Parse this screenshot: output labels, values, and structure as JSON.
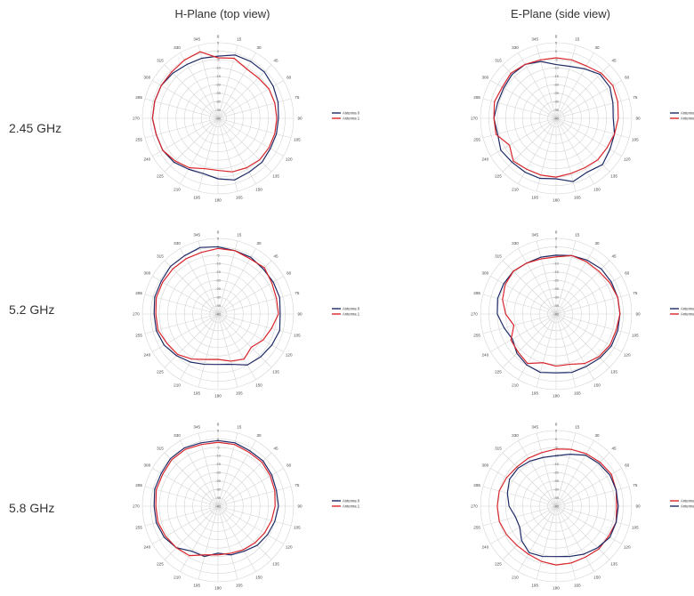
{
  "headers": {
    "h_plane": "H-Plane (top view)",
    "e_plane": "E-Plane (side view)"
  },
  "rows": [
    "2.45 GHz",
    "5.2 GHz",
    "5.8 GHz"
  ],
  "colors": {
    "antenna_0": "#1f2a66",
    "antenna_1": "#d9252b"
  },
  "chart_data": [
    {
      "type": "polar",
      "plane": "H-Plane",
      "band": "2.45 GHz",
      "angles": [
        0,
        15,
        30,
        45,
        60,
        75,
        90,
        105,
        120,
        135,
        150,
        165,
        180,
        195,
        210,
        225,
        240,
        255,
        270,
        285,
        300,
        315,
        330,
        345
      ],
      "rlim": [
        -40,
        5
      ],
      "r_ticks": [
        "5",
        "0",
        "-5",
        "-10",
        "-15",
        "-20",
        "-25",
        "-30",
        "-35",
        "-40"
      ],
      "legend": [
        "Antenna 0",
        "Antenna 1"
      ],
      "series": [
        {
          "name": "Antenna 0",
          "values": [
            -3,
            -1,
            -1,
            -1,
            -2,
            -3,
            -4,
            -4,
            -4,
            -3,
            -3,
            -2,
            -4,
            -6,
            -5,
            -3,
            -2,
            -2,
            -1,
            -1,
            -1,
            -2,
            -3,
            -3
          ]
        },
        {
          "name": "Antenna 1",
          "values": [
            -4,
            -3,
            -6,
            -6,
            -5,
            -5,
            -5,
            -5,
            -5,
            -5,
            -6,
            -7,
            -9,
            -9,
            -6,
            -4,
            -2,
            -2,
            -1,
            -1,
            -1,
            -1,
            0,
            1
          ]
        }
      ]
    },
    {
      "type": "polar",
      "plane": "E-Plane",
      "band": "2.45 GHz",
      "angles": [
        0,
        15,
        30,
        45,
        60,
        75,
        90,
        105,
        120,
        135,
        150,
        165,
        180,
        195,
        210,
        225,
        240,
        255,
        270,
        285,
        300,
        315,
        330,
        345
      ],
      "rlim": [
        -40,
        5
      ],
      "r_ticks": [
        "5",
        "0",
        "-5",
        "-10",
        "-15",
        "-20",
        "-25",
        "-30",
        "-35",
        "-40"
      ],
      "legend": [
        "Antenna 0",
        "Antenna 1"
      ],
      "series": [
        {
          "name": "Antenna 0",
          "values": [
            -8,
            -8,
            -6,
            -3,
            -3,
            -5,
            -6,
            -4,
            -3,
            -1,
            -3,
            -1,
            -4,
            -3,
            -3,
            -3,
            -2,
            -4,
            -3,
            -4,
            -4,
            -3,
            -3,
            -5
          ]
        },
        {
          "name": "Antenna 1",
          "values": [
            -4,
            -4,
            -4,
            -2,
            -1,
            -2,
            -3,
            -4,
            -5,
            -5,
            -6,
            -6,
            -5,
            -5,
            -5,
            -4,
            -8,
            -3,
            -3,
            -2,
            -3,
            -2,
            -3,
            -4
          ]
        }
      ]
    },
    {
      "type": "polar",
      "plane": "H-Plane",
      "band": "5.2 GHz",
      "angles": [
        0,
        15,
        30,
        45,
        60,
        75,
        90,
        105,
        120,
        135,
        150,
        165,
        180,
        195,
        210,
        225,
        240,
        255,
        270,
        285,
        300,
        315,
        330,
        345
      ],
      "rlim": [
        -40,
        5
      ],
      "r_ticks": [
        "5",
        "0",
        "-5",
        "-10",
        "-15",
        "-20",
        "-25",
        "-30",
        "-35",
        "-40"
      ],
      "legend": [
        "Antenna 0",
        "Antenna 1"
      ],
      "series": [
        {
          "name": "Antenna 0",
          "values": [
            0,
            -1,
            -1,
            -2,
            -2,
            -2,
            -3,
            -2,
            -3,
            -4,
            -5,
            -9,
            -10,
            -9,
            -7,
            -5,
            -3,
            -2,
            -2,
            -1,
            -1,
            0,
            0,
            1
          ]
        },
        {
          "name": "Antenna 1",
          "values": [
            -1,
            -1,
            -2,
            -1,
            -3,
            -4,
            -4,
            -7,
            -9,
            -12,
            -9,
            -11,
            -13,
            -12,
            -9,
            -6,
            -5,
            -3,
            -3,
            -2,
            -2,
            -2,
            -2,
            -2
          ]
        }
      ]
    },
    {
      "type": "polar",
      "plane": "E-Plane",
      "band": "5.2 GHz",
      "angles": [
        0,
        15,
        30,
        45,
        60,
        75,
        90,
        105,
        120,
        135,
        150,
        165,
        180,
        195,
        210,
        225,
        240,
        255,
        270,
        285,
        300,
        315,
        330,
        345
      ],
      "rlim": [
        -40,
        5
      ],
      "r_ticks": [
        "5",
        "0",
        "-5",
        "-10",
        "-15",
        "-20",
        "-25",
        "-30",
        "-35",
        "-40"
      ],
      "legend": [
        "Antenna 0",
        "Antenna 1"
      ],
      "series": [
        {
          "name": "Antenna 0",
          "values": [
            -5,
            -4,
            -3,
            -2,
            -2,
            -2,
            -2,
            -2,
            -2,
            -3,
            -4,
            -4,
            -5,
            -4,
            -5,
            -7,
            -10,
            -8,
            -5,
            -4,
            -4,
            -4,
            -5,
            -5
          ]
        },
        {
          "name": "Antenna 1",
          "values": [
            -6,
            -4,
            -4,
            -4,
            -3,
            -2,
            -2,
            -3,
            -3,
            -4,
            -6,
            -9,
            -9,
            -10,
            -6,
            -8,
            -9,
            -14,
            -10,
            -7,
            -5,
            -4,
            -5,
            -6
          ]
        }
      ]
    },
    {
      "type": "polar",
      "plane": "H-Plane",
      "band": "5.8 GHz",
      "angles": [
        0,
        15,
        30,
        45,
        60,
        75,
        90,
        105,
        120,
        135,
        150,
        165,
        180,
        195,
        210,
        225,
        240,
        255,
        270,
        285,
        300,
        315,
        330,
        345
      ],
      "rlim": [
        -40,
        5
      ],
      "r_ticks": [
        "5",
        "0",
        "-5",
        "-10",
        "-15",
        "-20",
        "-25",
        "-30",
        "-35",
        "-40"
      ],
      "legend": [
        "Antenna 0",
        "Antenna 1"
      ],
      "series": [
        {
          "name": "Antenna 0",
          "values": [
            -1,
            -1,
            -2,
            -2,
            -3,
            -4,
            -4,
            -5,
            -6,
            -7,
            -9,
            -10,
            -12,
            -9,
            -9,
            -5,
            -3,
            -2,
            -2,
            -1,
            -1,
            0,
            0,
            -1
          ]
        },
        {
          "name": "Antenna 1",
          "values": [
            -2,
            -2,
            -3,
            -3,
            -4,
            -5,
            -6,
            -7,
            -8,
            -9,
            -10,
            -11,
            -11,
            -10,
            -6,
            -5,
            -4,
            -3,
            -3,
            -2,
            -2,
            -1,
            -1,
            -2
          ]
        }
      ]
    },
    {
      "type": "polar",
      "plane": "E-Plane",
      "band": "5.8 GHz",
      "angles": [
        0,
        15,
        30,
        45,
        60,
        75,
        90,
        105,
        120,
        135,
        150,
        165,
        180,
        195,
        210,
        225,
        240,
        255,
        270,
        285,
        300,
        315,
        330,
        345
      ],
      "rlim": [
        -40,
        5
      ],
      "r_ticks": [
        "5",
        "0",
        "-5",
        "-10",
        "-15",
        "-20",
        "-25",
        "-30",
        "-35",
        "-40"
      ],
      "legend": [
        "Antenna 1",
        "Antenna 0"
      ],
      "series": [
        {
          "name": "Antenna 1",
          "values": [
            -6,
            -5,
            -4,
            -3,
            -2,
            -3,
            -4,
            -3,
            -4,
            -4,
            -5,
            -5,
            -5,
            -6,
            -7,
            -7,
            -6,
            -5,
            -5,
            -5,
            -6,
            -7,
            -7,
            -7
          ]
        },
        {
          "name": "Antenna 0",
          "values": [
            -10,
            -8,
            -5,
            -4,
            -3,
            -3,
            -3,
            -3,
            -3,
            -5,
            -7,
            -9,
            -10,
            -9,
            -8,
            -11,
            -15,
            -15,
            -12,
            -10,
            -8,
            -8,
            -9,
            -10
          ]
        }
      ]
    }
  ]
}
